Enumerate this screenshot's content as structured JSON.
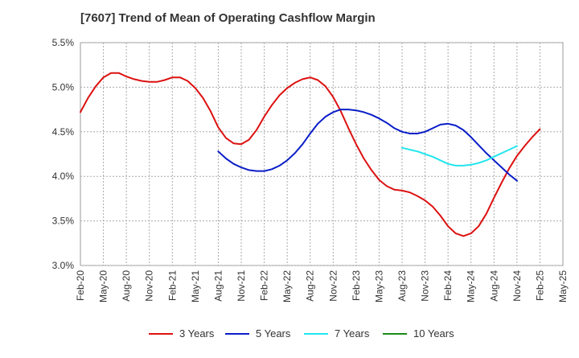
{
  "chart_data": {
    "type": "line",
    "title": "[7607]  Trend of Mean of Operating Cashflow Margin",
    "xlabel": "",
    "ylabel": "",
    "ylim": [
      3.0,
      5.5
    ],
    "yticks": [
      "3.0%",
      "3.5%",
      "4.0%",
      "4.5%",
      "5.0%",
      "5.5%"
    ],
    "ytick_values": [
      3.0,
      3.5,
      4.0,
      4.5,
      5.0,
      5.5
    ],
    "xticks": [
      "Feb-20",
      "May-20",
      "Aug-20",
      "Nov-20",
      "Feb-21",
      "May-21",
      "Aug-21",
      "Nov-21",
      "Feb-22",
      "May-22",
      "Aug-22",
      "Nov-22",
      "Feb-23",
      "May-23",
      "Aug-23",
      "Nov-23",
      "Feb-24",
      "May-24",
      "Aug-24",
      "Nov-24",
      "Feb-25",
      "May-25"
    ],
    "grid": true,
    "legend_position": "bottom",
    "series": [
      {
        "name": "3 Years",
        "color": "#dd1111",
        "start_index": 0,
        "values": [
          4.72,
          4.88,
          5.01,
          5.11,
          5.16,
          5.16,
          5.12,
          5.09,
          5.07,
          5.06,
          5.06,
          5.08,
          5.11,
          5.11,
          5.07,
          4.99,
          4.88,
          4.73,
          4.55,
          4.43,
          4.37,
          4.36,
          4.41,
          4.52,
          4.67,
          4.8,
          4.91,
          4.99,
          5.05,
          5.09,
          5.11,
          5.08,
          5.01,
          4.89,
          4.73,
          4.54,
          4.36,
          4.2,
          4.07,
          3.96,
          3.89,
          3.85,
          3.84,
          3.82,
          3.78,
          3.73,
          3.66,
          3.56,
          3.44,
          3.36,
          3.33,
          3.36,
          3.44,
          3.58,
          3.76,
          3.93,
          4.09,
          4.23,
          4.34,
          4.44,
          4.53
        ]
      },
      {
        "name": "5 Years",
        "color": "#0a1ec8",
        "start_index": 18,
        "values": [
          4.28,
          4.2,
          4.14,
          4.1,
          4.07,
          4.06,
          4.06,
          4.08,
          4.12,
          4.18,
          4.26,
          4.36,
          4.48,
          4.59,
          4.67,
          4.72,
          4.75,
          4.75,
          4.74,
          4.72,
          4.69,
          4.65,
          4.6,
          4.54,
          4.5,
          4.48,
          4.48,
          4.5,
          4.54,
          4.58,
          4.59,
          4.57,
          4.52,
          4.44,
          4.35,
          4.26,
          4.18,
          4.1,
          4.02,
          3.95
        ]
      },
      {
        "name": "7 Years",
        "color": "#22e6ee",
        "start_index": 42,
        "values": [
          4.32,
          4.3,
          4.28,
          4.25,
          4.22,
          4.18,
          4.14,
          4.12,
          4.12,
          4.13,
          4.15,
          4.18,
          4.22,
          4.26,
          4.3,
          4.34
        ]
      },
      {
        "name": "10 Years",
        "color": "#1a8a1a",
        "start_index": 0,
        "values": []
      }
    ]
  }
}
